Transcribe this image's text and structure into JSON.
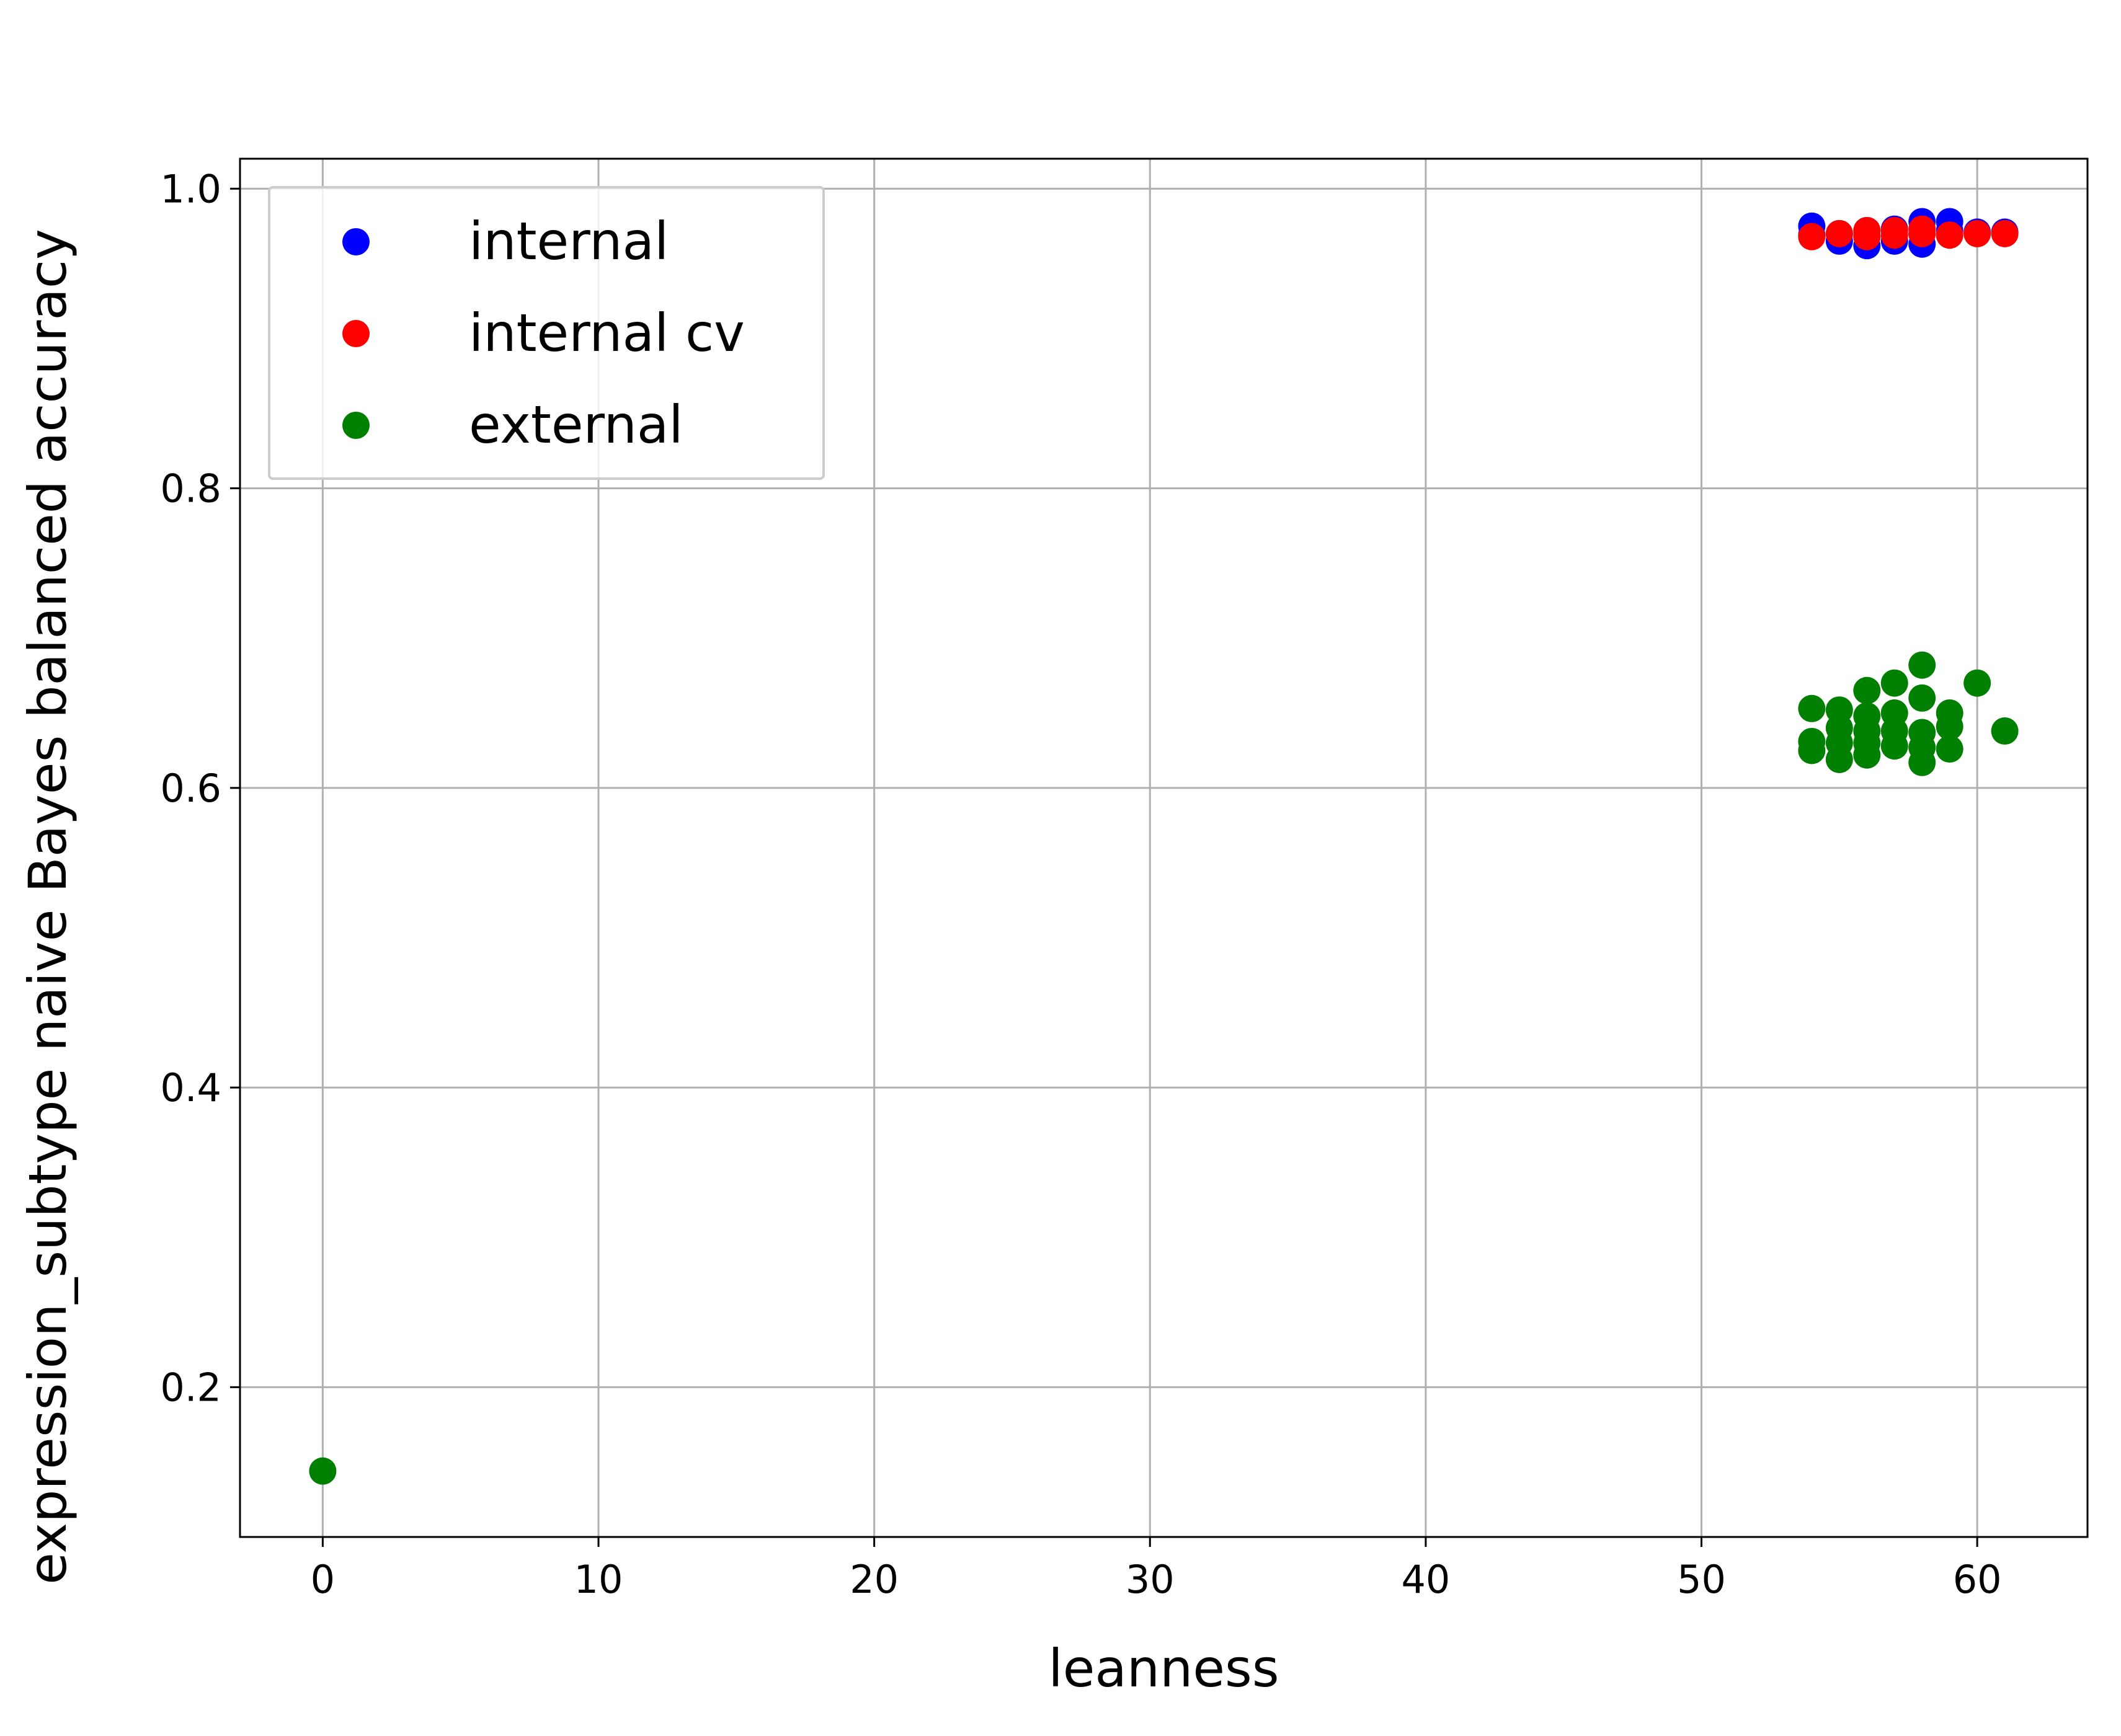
{
  "chart_data": {
    "type": "scatter",
    "xlabel": "leanness",
    "ylabel": "expression_subtype naive Bayes balanced accuracy",
    "xlim": [
      -3,
      64
    ],
    "ylim": [
      0.1,
      1.02
    ],
    "xticks": [
      0,
      10,
      20,
      30,
      40,
      50,
      60
    ],
    "yticks": [
      0.2,
      0.4,
      0.6,
      0.8,
      1.0
    ],
    "xtick_labels": [
      "0",
      "10",
      "20",
      "30",
      "40",
      "50",
      "60"
    ],
    "ytick_labels": [
      "0.2",
      "0.4",
      "0.6",
      "0.8",
      "1.0"
    ],
    "grid": true,
    "legend_position": "top-left",
    "series": [
      {
        "name": "internal",
        "color": "#0000ff",
        "points": [
          [
            54,
            0.975
          ],
          [
            54,
            0.969
          ],
          [
            55,
            0.965
          ],
          [
            55,
            0.97
          ],
          [
            56,
            0.962
          ],
          [
            56,
            0.972
          ],
          [
            56,
            0.968
          ],
          [
            57,
            0.965
          ],
          [
            57,
            0.973
          ],
          [
            58,
            0.963
          ],
          [
            58,
            0.978
          ],
          [
            58,
            0.97
          ],
          [
            59,
            0.978
          ],
          [
            59,
            0.972
          ],
          [
            60,
            0.971
          ],
          [
            61,
            0.971
          ]
        ]
      },
      {
        "name": "internal cv",
        "color": "#ff0000",
        "points": [
          [
            54,
            0.968
          ],
          [
            55,
            0.97
          ],
          [
            56,
            0.968
          ],
          [
            56,
            0.972
          ],
          [
            57,
            0.969
          ],
          [
            57,
            0.972
          ],
          [
            58,
            0.97
          ],
          [
            58,
            0.973
          ],
          [
            59,
            0.969
          ],
          [
            60,
            0.97
          ],
          [
            61,
            0.97
          ]
        ]
      },
      {
        "name": "external",
        "color": "#008000",
        "points": [
          [
            0,
            0.144
          ],
          [
            54,
            0.653
          ],
          [
            54,
            0.631
          ],
          [
            54,
            0.625
          ],
          [
            55,
            0.652
          ],
          [
            55,
            0.64
          ],
          [
            55,
            0.63
          ],
          [
            55,
            0.619
          ],
          [
            56,
            0.665
          ],
          [
            56,
            0.648
          ],
          [
            56,
            0.638
          ],
          [
            56,
            0.63
          ],
          [
            56,
            0.622
          ],
          [
            57,
            0.67
          ],
          [
            57,
            0.65
          ],
          [
            57,
            0.638
          ],
          [
            57,
            0.628
          ],
          [
            58,
            0.682
          ],
          [
            58,
            0.66
          ],
          [
            58,
            0.637
          ],
          [
            58,
            0.627
          ],
          [
            58,
            0.617
          ],
          [
            59,
            0.65
          ],
          [
            59,
            0.641
          ],
          [
            59,
            0.626
          ],
          [
            60,
            0.67
          ],
          [
            61,
            0.638
          ]
        ]
      }
    ]
  }
}
